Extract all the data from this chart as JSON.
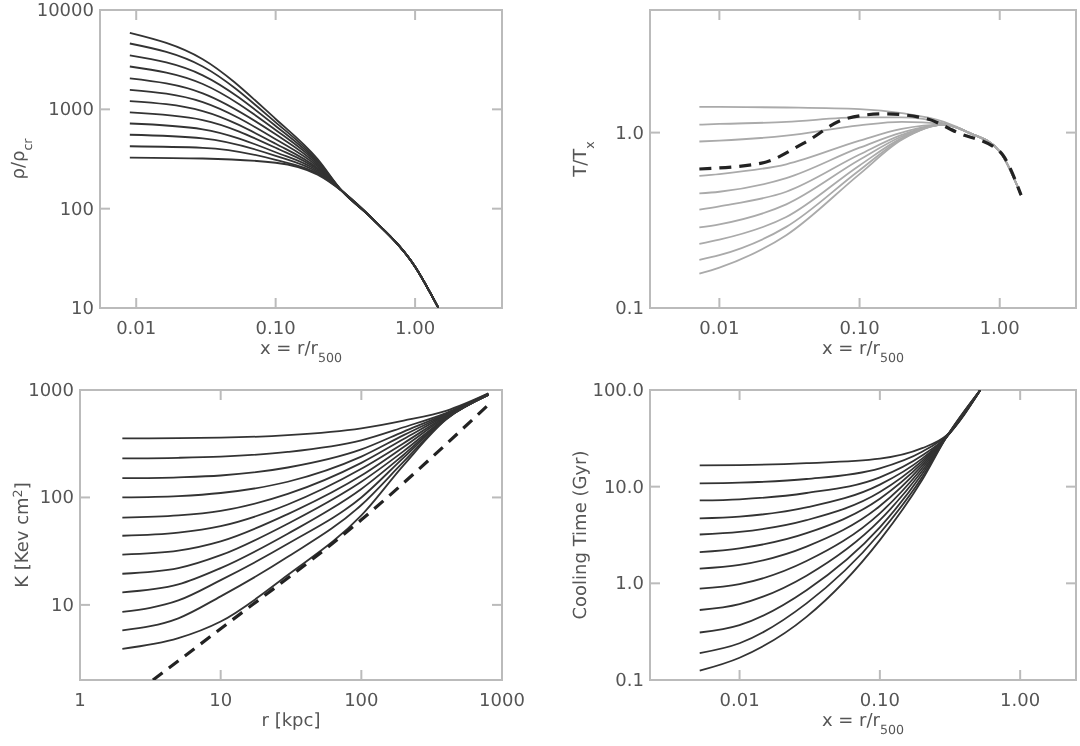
{
  "chart_data": [
    {
      "type": "line",
      "log": "xy",
      "xlim": [
        0.0055,
        4.2
      ],
      "ylim": [
        10,
        10000
      ],
      "xticks": [
        {
          "value": 0.01,
          "label": "0.01"
        },
        {
          "value": 0.1,
          "label": "0.10"
        },
        {
          "value": 1,
          "label": "1.00"
        }
      ],
      "yticks": [
        10,
        100,
        1000,
        10000
      ],
      "xlabel": "x = r/r$_{500}$",
      "ylabel": "ρ/ρ$_{cr}$",
      "x": [
        0.009,
        0.03,
        0.1,
        0.2,
        0.3,
        0.5,
        1.0,
        1.47
      ],
      "series": [
        {
          "color": "#333333",
          "values": [
            5900,
            3200,
            800,
            316,
            150,
            78,
            26,
            10
          ]
        },
        {
          "color": "#333333",
          "values": [
            4600,
            2700,
            740,
            305,
            150,
            78,
            26,
            10
          ]
        },
        {
          "color": "#333333",
          "values": [
            3500,
            2200,
            680,
            295,
            150,
            78,
            26,
            10
          ]
        },
        {
          "color": "#333333",
          "values": [
            2700,
            1800,
            620,
            285,
            150,
            78,
            26,
            10
          ]
        },
        {
          "color": "#333333",
          "values": [
            2050,
            1450,
            560,
            275,
            150,
            78,
            26,
            10
          ]
        },
        {
          "color": "#333333",
          "values": [
            1570,
            1180,
            500,
            265,
            150,
            78,
            26,
            10
          ]
        },
        {
          "color": "#333333",
          "values": [
            1210,
            960,
            450,
            255,
            150,
            78,
            26,
            10
          ]
        },
        {
          "color": "#333333",
          "values": [
            930,
            780,
            410,
            248,
            150,
            78,
            26,
            10
          ]
        },
        {
          "color": "#333333",
          "values": [
            720,
            630,
            370,
            240,
            150,
            78,
            26,
            10
          ]
        },
        {
          "color": "#333333",
          "values": [
            555,
            510,
            340,
            232,
            150,
            78,
            26,
            10
          ]
        },
        {
          "color": "#333333",
          "values": [
            425,
            410,
            310,
            226,
            150,
            78,
            26,
            10
          ]
        },
        {
          "color": "#333333",
          "values": [
            327,
            320,
            290,
            220,
            150,
            78,
            26,
            10
          ]
        }
      ]
    },
    {
      "type": "line",
      "log": "xy",
      "xlim": [
        0.0032,
        3.5
      ],
      "ylim": [
        0.1,
        5
      ],
      "xticks": [
        {
          "value": 0.01,
          "label": "0.01"
        },
        {
          "value": 0.1,
          "label": "0.10"
        },
        {
          "value": 1,
          "label": "1.00"
        }
      ],
      "yticks": [
        {
          "value": 0.1,
          "label": "0.1"
        },
        {
          "value": 1,
          "label": "1.0"
        }
      ],
      "xlabel": "x = r/r$_{500}$",
      "ylabel": "T/T$_{x}$",
      "x": [
        0.0072,
        0.01,
        0.03,
        0.1,
        0.2,
        0.4,
        0.6,
        1.0,
        1.42
      ],
      "series": [
        {
          "color": "#aaaaaa",
          "values": [
            1.4,
            1.4,
            1.39,
            1.36,
            1.29,
            1.15,
            1.0,
            0.78,
            0.44
          ]
        },
        {
          "color": "#aaaaaa",
          "values": [
            1.11,
            1.12,
            1.15,
            1.22,
            1.22,
            1.13,
            1.0,
            0.78,
            0.44
          ]
        },
        {
          "color": "#aaaaaa",
          "values": [
            0.89,
            0.9,
            0.96,
            1.1,
            1.15,
            1.12,
            1.0,
            0.78,
            0.44
          ]
        },
        {
          "color": "#aaaaaa",
          "values": [
            0.566,
            0.58,
            0.66,
            0.9,
            1.05,
            1.11,
            1.0,
            0.78,
            0.44
          ]
        },
        {
          "color": "#aaaaaa",
          "values": [
            0.45,
            0.46,
            0.55,
            0.82,
            1.0,
            1.11,
            1.0,
            0.78,
            0.44
          ]
        },
        {
          "color": "#aaaaaa",
          "values": [
            0.364,
            0.38,
            0.46,
            0.75,
            0.97,
            1.11,
            1.0,
            0.78,
            0.44
          ]
        },
        {
          "color": "#aaaaaa",
          "values": [
            0.288,
            0.3,
            0.39,
            0.7,
            0.95,
            1.11,
            1.0,
            0.78,
            0.44
          ]
        },
        {
          "color": "#aaaaaa",
          "values": [
            0.232,
            0.245,
            0.33,
            0.65,
            0.93,
            1.11,
            1.0,
            0.78,
            0.44
          ]
        },
        {
          "color": "#aaaaaa",
          "values": [
            0.188,
            0.2,
            0.29,
            0.61,
            0.92,
            1.11,
            1.0,
            0.78,
            0.44
          ]
        },
        {
          "color": "#aaaaaa",
          "values": [
            0.157,
            0.17,
            0.26,
            0.58,
            0.91,
            1.11,
            1.0,
            0.78,
            0.44
          ]
        },
        {
          "color": "#222222",
          "line_style": "dashed",
          "x": [
            0.0072,
            0.02,
            0.04,
            0.08,
            0.15,
            0.3,
            0.5,
            1.0,
            1.42
          ],
          "values": [
            0.62,
            0.67,
            0.87,
            1.2,
            1.28,
            1.2,
            1.0,
            0.78,
            0.44
          ]
        }
      ]
    },
    {
      "type": "line",
      "log": "xy",
      "xlim": [
        1,
        1000
      ],
      "ylim": [
        2,
        1000
      ],
      "xticks": [
        1,
        10,
        100,
        1000
      ],
      "yticks": [
        10,
        100,
        1000
      ],
      "xlabel": "r [kpc]",
      "ylabel": "K [Kev cm$^{2}$]",
      "x": [
        2,
        5,
        10,
        30,
        100,
        200,
        400,
        800
      ],
      "series": [
        {
          "color": "#333333",
          "values": [
            354,
            357,
            360,
            380,
            440,
            520,
            640,
            930
          ]
        },
        {
          "color": "#333333",
          "values": [
            231,
            234,
            240,
            265,
            340,
            450,
            610,
            925
          ]
        },
        {
          "color": "#333333",
          "values": [
            151,
            154,
            160,
            190,
            280,
            410,
            600,
            920
          ]
        },
        {
          "color": "#333333",
          "values": [
            100,
            103,
            110,
            140,
            240,
            380,
            590,
            915
          ]
        },
        {
          "color": "#333333",
          "values": [
            65,
            68,
            75,
            108,
            210,
            350,
            580,
            910
          ]
        },
        {
          "color": "#333333",
          "values": [
            44,
            47,
            54,
            86,
            185,
            320,
            570,
            910
          ]
        },
        {
          "color": "#333333",
          "values": [
            29.4,
            32,
            39,
            70,
            160,
            295,
            560,
            905
          ]
        },
        {
          "color": "#333333",
          "values": [
            19.5,
            22,
            29,
            57,
            140,
            270,
            550,
            905
          ]
        },
        {
          "color": "#333333",
          "values": [
            13.1,
            15.5,
            22,
            46,
            120,
            250,
            545,
            900
          ]
        },
        {
          "color": "#333333",
          "values": [
            8.6,
            11,
            17,
            37,
            100,
            235,
            540,
            900
          ]
        },
        {
          "color": "#333333",
          "values": [
            5.8,
            7.5,
            12,
            28,
            85,
            215,
            535,
            900
          ]
        },
        {
          "color": "#333333",
          "values": [
            3.9,
            4.9,
            7,
            19,
            68,
            200,
            530,
            900
          ]
        },
        {
          "color": "#222222",
          "line_style": "dashed",
          "x": [
            3.3,
            10,
            100,
            850
          ],
          "values": [
            2,
            6,
            62,
            785
          ]
        }
      ]
    },
    {
      "type": "line",
      "log": "xy",
      "xlim": [
        0.0023,
        2.5
      ],
      "ylim": [
        0.1,
        100
      ],
      "xticks": [
        {
          "value": 0.01,
          "label": "0.01"
        },
        {
          "value": 0.1,
          "label": "0.10"
        },
        {
          "value": 1,
          "label": "1.00"
        }
      ],
      "yticks": [
        {
          "value": 0.1,
          "label": "0.1"
        },
        {
          "value": 1,
          "label": "1.0"
        },
        {
          "value": 10,
          "label": "10.0"
        },
        {
          "value": 100,
          "label": "100.0"
        }
      ],
      "xlabel": "x = r/r$_{500}$",
      "ylabel": "Cooling Time (Gyr)",
      "x": [
        0.0052,
        0.01,
        0.03,
        0.1,
        0.2,
        0.3,
        0.52
      ],
      "series": [
        {
          "color": "#333333",
          "values": [
            16.6,
            16.7,
            17.5,
            19.5,
            25,
            34,
            100
          ]
        },
        {
          "color": "#333333",
          "values": [
            10.8,
            11,
            12,
            15.5,
            23,
            34,
            100
          ]
        },
        {
          "color": "#333333",
          "values": [
            7.2,
            7.4,
            8.6,
            12.5,
            21,
            33,
            100
          ]
        },
        {
          "color": "#333333",
          "values": [
            4.7,
            4.9,
            6.1,
            10.5,
            19.5,
            33,
            100
          ]
        },
        {
          "color": "#333333",
          "values": [
            3.2,
            3.4,
            4.5,
            8.8,
            18.5,
            33,
            100
          ]
        },
        {
          "color": "#333333",
          "values": [
            2.1,
            2.3,
            3.3,
            7.5,
            17.5,
            33,
            100
          ]
        },
        {
          "color": "#333333",
          "values": [
            1.42,
            1.55,
            2.4,
            6.3,
            16.5,
            33,
            100
          ]
        },
        {
          "color": "#333333",
          "values": [
            0.88,
            0.98,
            1.7,
            5.3,
            15.5,
            33,
            100
          ]
        },
        {
          "color": "#333333",
          "values": [
            0.53,
            0.61,
            1.2,
            4.5,
            14.5,
            33,
            100
          ]
        },
        {
          "color": "#333333",
          "values": [
            0.31,
            0.37,
            0.85,
            3.8,
            13.5,
            33,
            100
          ]
        },
        {
          "color": "#333333",
          "values": [
            0.19,
            0.24,
            0.62,
            3.3,
            12.5,
            33,
            100
          ]
        },
        {
          "color": "#333333",
          "values": [
            0.125,
            0.17,
            0.45,
            2.8,
            11.7,
            33,
            100
          ]
        }
      ]
    }
  ]
}
